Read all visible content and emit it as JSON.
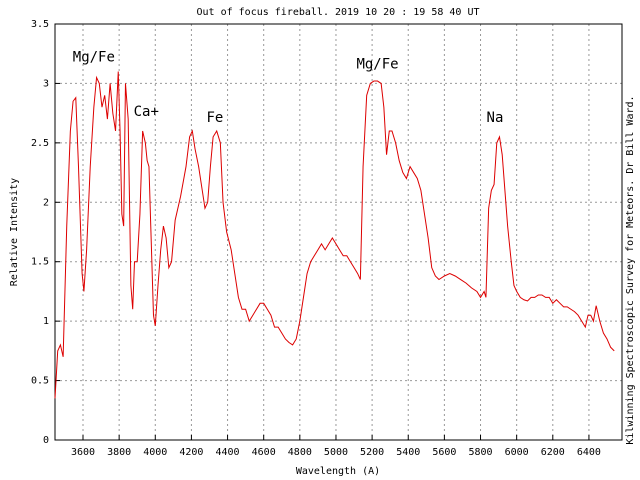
{
  "chart_data": {
    "type": "line",
    "title": "Out of focus fireball. 2019 10 20 : 19 58 40 UT",
    "x_label": "Wavelength (A)",
    "y_label": "Relative Intensity",
    "side_note": "Kilwinning Spectroscopic Survey for Meteors. Dr Bill Ward.",
    "color": "#dd0000",
    "grid": true,
    "xlim": [
      3445,
      6583
    ],
    "ylim": [
      0,
      3.5
    ],
    "xticks": [
      3600,
      3800,
      4000,
      4200,
      4400,
      4600,
      4800,
      5000,
      5200,
      5400,
      5600,
      5800,
      6000,
      6200,
      6400
    ],
    "yticks": [
      0,
      0.5,
      1,
      1.5,
      2,
      2.5,
      3,
      3.5
    ],
    "annotations": [
      {
        "text": "Mg/Fe",
        "x": 3660,
        "y": 3.22
      },
      {
        "text": "Ca+",
        "x": 3950,
        "y": 2.76
      },
      {
        "text": "Fe",
        "x": 4330,
        "y": 2.71
      },
      {
        "text": "Mg/Fe",
        "x": 5230,
        "y": 3.16
      },
      {
        "text": "Na",
        "x": 5880,
        "y": 2.71
      }
    ],
    "x": [
      3445,
      3460,
      3475,
      3490,
      3510,
      3530,
      3545,
      3560,
      3575,
      3595,
      3605,
      3620,
      3640,
      3660,
      3675,
      3690,
      3705,
      3720,
      3735,
      3750,
      3765,
      3780,
      3795,
      3805,
      3815,
      3825,
      3835,
      3850,
      3865,
      3875,
      3885,
      3900,
      3915,
      3930,
      3945,
      3955,
      3965,
      3975,
      3990,
      4000,
      4015,
      4030,
      4045,
      4060,
      4075,
      4090,
      4110,
      4140,
      4170,
      4190,
      4205,
      4220,
      4240,
      4260,
      4275,
      4290,
      4305,
      4320,
      4340,
      4360,
      4375,
      4395,
      4420,
      4440,
      4460,
      4480,
      4500,
      4520,
      4540,
      4560,
      4580,
      4600,
      4620,
      4640,
      4660,
      4680,
      4700,
      4720,
      4740,
      4760,
      4780,
      4800,
      4820,
      4840,
      4860,
      4880,
      4900,
      4920,
      4940,
      4960,
      4980,
      5000,
      5020,
      5040,
      5060,
      5080,
      5100,
      5120,
      5135,
      5150,
      5170,
      5190,
      5210,
      5230,
      5250,
      5265,
      5280,
      5295,
      5310,
      5330,
      5350,
      5370,
      5390,
      5410,
      5430,
      5450,
      5470,
      5490,
      5510,
      5530,
      5550,
      5570,
      5600,
      5630,
      5660,
      5690,
      5720,
      5750,
      5780,
      5800,
      5820,
      5830,
      5845,
      5860,
      5875,
      5890,
      5905,
      5920,
      5935,
      5950,
      5970,
      5985,
      6000,
      6020,
      6040,
      6060,
      6080,
      6100,
      6120,
      6140,
      6160,
      6180,
      6200,
      6220,
      6240,
      6260,
      6280,
      6300,
      6320,
      6340,
      6360,
      6380,
      6395,
      6410,
      6425,
      6440,
      6460,
      6480,
      6500,
      6520,
      6540
    ],
    "values": [
      0.35,
      0.75,
      0.8,
      0.7,
      1.8,
      2.6,
      2.85,
      2.88,
      2.3,
      1.4,
      1.25,
      1.6,
      2.3,
      2.8,
      3.05,
      3.0,
      2.8,
      2.9,
      2.7,
      3.0,
      2.75,
      2.6,
      3.1,
      2.6,
      1.9,
      1.8,
      3.0,
      2.7,
      1.3,
      1.1,
      1.5,
      1.5,
      1.9,
      2.6,
      2.5,
      2.35,
      2.3,
      1.8,
      1.05,
      0.96,
      1.3,
      1.6,
      1.8,
      1.7,
      1.45,
      1.5,
      1.85,
      2.05,
      2.3,
      2.55,
      2.6,
      2.45,
      2.3,
      2.1,
      1.95,
      2.0,
      2.3,
      2.55,
      2.6,
      2.5,
      2.0,
      1.75,
      1.6,
      1.4,
      1.2,
      1.1,
      1.1,
      1.0,
      1.05,
      1.1,
      1.15,
      1.15,
      1.1,
      1.05,
      0.95,
      0.95,
      0.9,
      0.85,
      0.82,
      0.8,
      0.85,
      1.0,
      1.2,
      1.4,
      1.5,
      1.55,
      1.6,
      1.65,
      1.6,
      1.65,
      1.7,
      1.65,
      1.6,
      1.55,
      1.55,
      1.5,
      1.45,
      1.4,
      1.35,
      2.3,
      2.9,
      3.0,
      3.02,
      3.02,
      3.0,
      2.8,
      2.4,
      2.6,
      2.6,
      2.5,
      2.35,
      2.25,
      2.2,
      2.3,
      2.25,
      2.2,
      2.1,
      1.9,
      1.7,
      1.45,
      1.38,
      1.35,
      1.38,
      1.4,
      1.38,
      1.35,
      1.32,
      1.28,
      1.25,
      1.2,
      1.25,
      1.2,
      1.95,
      2.1,
      2.15,
      2.5,
      2.55,
      2.4,
      2.1,
      1.8,
      1.5,
      1.3,
      1.25,
      1.2,
      1.18,
      1.17,
      1.2,
      1.2,
      1.22,
      1.22,
      1.2,
      1.2,
      1.15,
      1.18,
      1.15,
      1.12,
      1.12,
      1.1,
      1.08,
      1.05,
      1.0,
      0.95,
      1.05,
      1.05,
      1.0,
      1.13,
      1.0,
      0.9,
      0.85,
      0.78,
      0.75
    ]
  }
}
